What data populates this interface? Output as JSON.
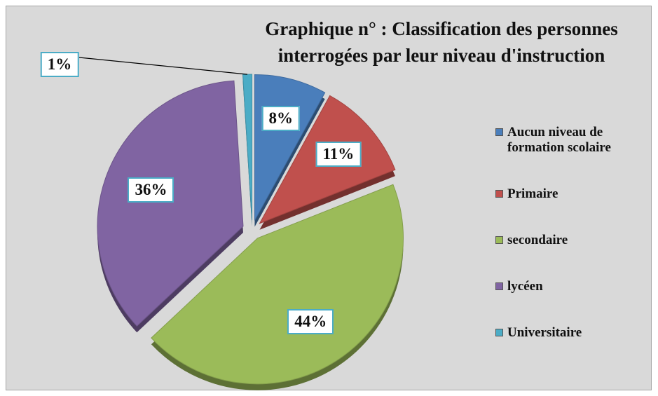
{
  "chart_data": {
    "type": "pie",
    "title": "Graphique n° : Classification des  personnes interrogées par leur niveau d'instruction",
    "categories": [
      "Aucun niveau de formation scolaire",
      "Primaire",
      "secondaire",
      "lycéen",
      "Universitaire"
    ],
    "values": [
      8,
      11,
      44,
      36,
      1
    ],
    "value_labels": [
      "8%",
      "11%",
      "44%",
      "36%",
      "1%"
    ],
    "colors": [
      "#4a7ebb",
      "#c0504d",
      "#9bbb59",
      "#8064a2",
      "#4bacc6"
    ],
    "legend": "right"
  }
}
